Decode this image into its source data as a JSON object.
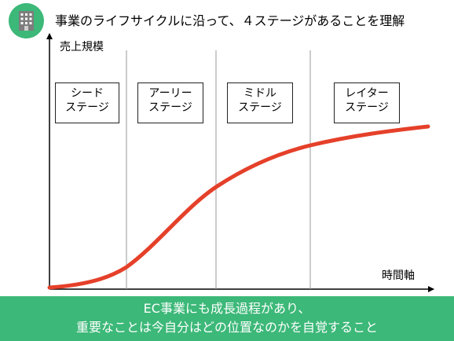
{
  "header": {
    "title": "事業のライフサイクルに沿って、４ステージがあることを理解",
    "icon": "building-icon"
  },
  "diagram": {
    "y_axis_label": "売上規模",
    "x_axis_label": "時間軸",
    "curve_color": "#e5402a",
    "stages": [
      {
        "line1": "シード",
        "line2": "ステージ"
      },
      {
        "line1": "アーリー",
        "line2": "ステージ"
      },
      {
        "line1": "ミドル",
        "line2": "ステージ"
      },
      {
        "line1": "レイター",
        "line2": "ステージ"
      }
    ]
  },
  "footer": {
    "line1": "EC事業にも成長過程があり、",
    "line2": "重要なことは今自分はどの位置なのかを自覚すること",
    "background": "#3cb878"
  }
}
